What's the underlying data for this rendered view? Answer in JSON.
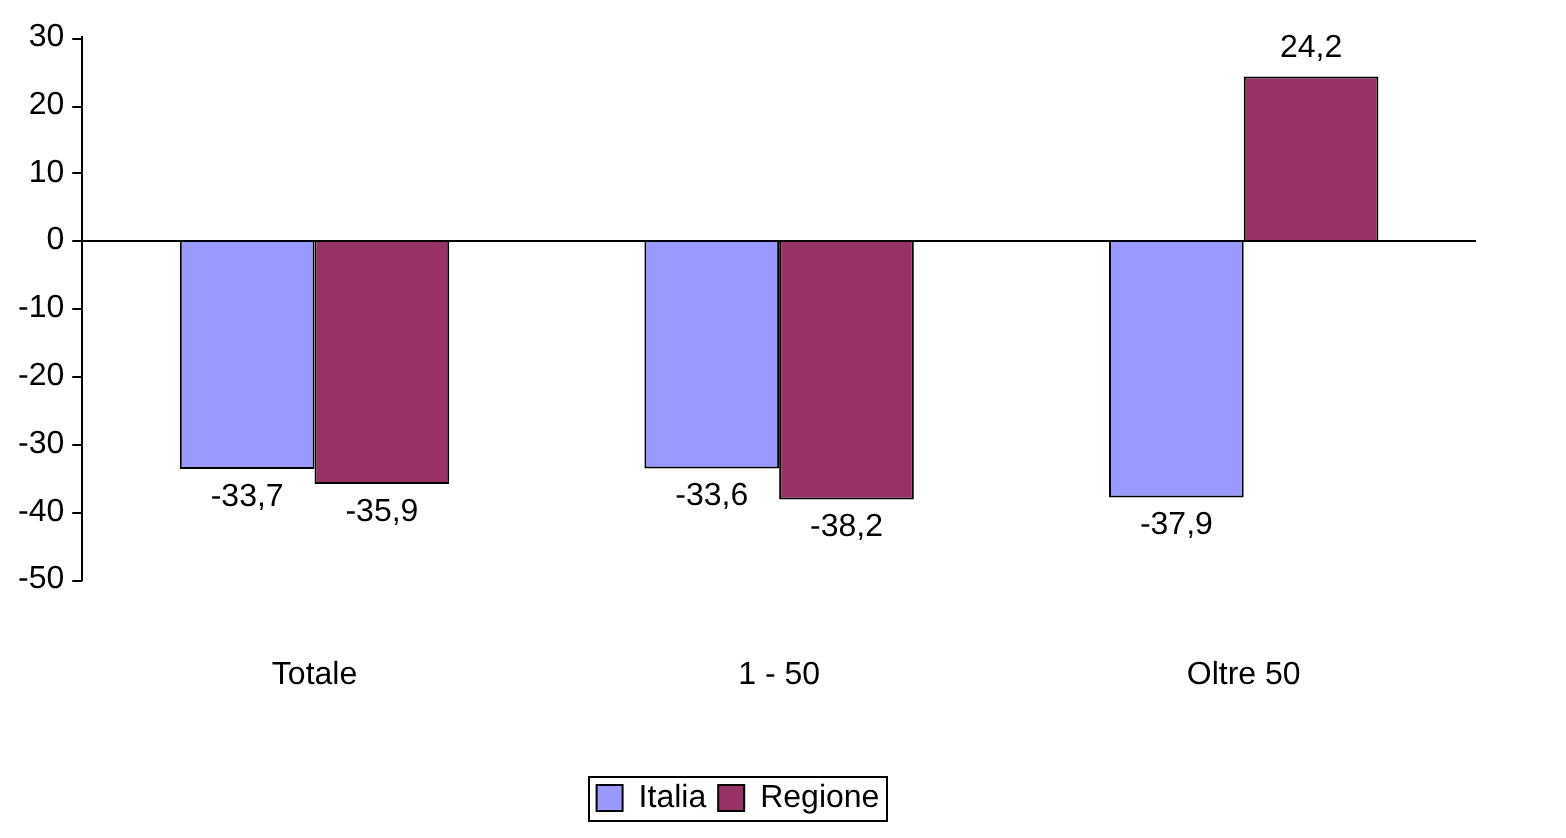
{
  "chart_data": {
    "type": "bar",
    "categories": [
      "Totale",
      "1 - 50",
      "Oltre 50"
    ],
    "series": [
      {
        "name": "Italia",
        "color": "#9999ff",
        "values": [
          -33.7,
          -33.6,
          -37.9
        ],
        "value_labels": [
          "-33,7",
          "-33,6",
          "-37,9"
        ]
      },
      {
        "name": "Regione",
        "color": "#993366",
        "values": [
          -35.9,
          -38.2,
          24.2
        ],
        "value_labels": [
          "-35,9",
          "-38,2",
          "24,2"
        ]
      }
    ],
    "ylim": [
      -50,
      30
    ],
    "yticks": [
      -50,
      -40,
      -30,
      -20,
      -10,
      0,
      10,
      20,
      30
    ],
    "legend": "bottom"
  }
}
